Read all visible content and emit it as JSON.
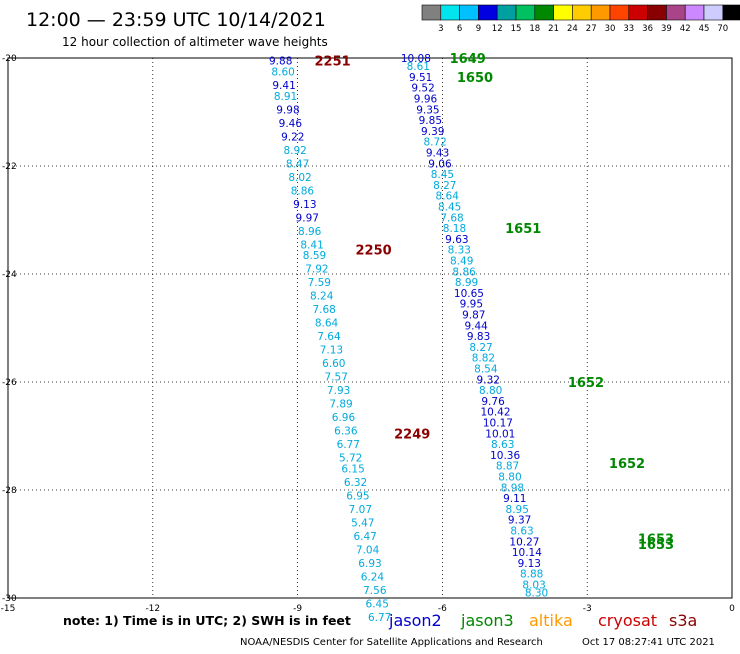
{
  "header": {
    "title": "12:00 — 23:59 UTC 10/14/2021",
    "subtitle": "12 hour collection of altimeter wave heights"
  },
  "colorbar": {
    "ticks": [
      "3",
      "6",
      "9",
      "12",
      "15",
      "18",
      "21",
      "24",
      "27",
      "30",
      "33",
      "36",
      "39",
      "42",
      "45",
      "70"
    ],
    "unit": "(ft)",
    "colors": [
      "#808080",
      "#00e5ee",
      "#00c0ff",
      "#0000e0",
      "#00a0a0",
      "#00c060",
      "#008800",
      "#ffff00",
      "#ffcc00",
      "#ff9900",
      "#ff4400",
      "#cc0000",
      "#880000",
      "#aa4488",
      "#cc88ff",
      "#ccccff",
      "#000000"
    ]
  },
  "footer": {
    "note": "note: 1) Time is in UTC; 2) SWH is in feet",
    "credit": "NOAA/NESDIS Center for Satellite Applications and Research",
    "timestamp": "Oct 17 08:27:41 UTC 2021",
    "legend": [
      {
        "name": "jason2",
        "color": "#0000cc"
      },
      {
        "name": "jason3",
        "color": "#008800"
      },
      {
        "name": "altika",
        "color": "#ff9900"
      },
      {
        "name": "cryosat",
        "color": "#cc0000"
      },
      {
        "name": "s3a",
        "color": "#880000"
      }
    ]
  },
  "chart_data": {
    "type": "scatter",
    "title": "12:00 — 23:59 UTC 10/14/2021",
    "xlim": [
      -15,
      0
    ],
    "ylim": [
      -30,
      -20
    ],
    "x_ticks": [
      -15,
      -12,
      -9,
      -6,
      -3,
      0
    ],
    "x_tick_labels": [
      "-15",
      "-12",
      "-9",
      "-6",
      "-3",
      "0"
    ],
    "y_ticks": [
      -20,
      -22,
      -24,
      -26,
      -28,
      -30
    ],
    "y_tick_labels": [
      "-20",
      "-22",
      "-24",
      "-26",
      "-28",
      "-30"
    ],
    "grid": true,
    "pass_labels": [
      {
        "text": "2251",
        "x": -8.65,
        "y": -20.05,
        "color": "#880000"
      },
      {
        "text": "2250",
        "x": -7.8,
        "y": -23.55,
        "color": "#880000"
      },
      {
        "text": "2249",
        "x": -7.0,
        "y": -26.95,
        "color": "#880000"
      },
      {
        "text": "1649",
        "x": -5.85,
        "y": -20.0,
        "color": "#008800"
      },
      {
        "text": "1650",
        "x": -5.7,
        "y": -20.35,
        "color": "#008800"
      },
      {
        "text": "1651",
        "x": -4.7,
        "y": -23.15,
        "color": "#008800"
      },
      {
        "text": "1652",
        "x": -3.4,
        "y": -26.0,
        "color": "#008800"
      },
      {
        "text": "1652",
        "x": -2.55,
        "y": -27.5,
        "color": "#008800"
      },
      {
        "text": "1653",
        "x": -1.95,
        "y": -28.9,
        "color": "#008800"
      },
      {
        "text": "1653",
        "x": -1.95,
        "y": -29.0,
        "color": "#008800"
      }
    ],
    "series": [
      {
        "name": "s3a",
        "points": [
          {
            "x": -9.35,
            "y": -20.05,
            "v": "9.88",
            "c": "#0000cc"
          },
          {
            "x": -9.3,
            "y": -20.25,
            "v": "8.60",
            "c": "#00aadd"
          },
          {
            "x": -9.28,
            "y": -20.5,
            "v": "9.41",
            "c": "#0000cc"
          },
          {
            "x": -9.25,
            "y": -20.7,
            "v": "8.91",
            "c": "#00aadd"
          },
          {
            "x": -9.2,
            "y": -20.95,
            "v": "9.98",
            "c": "#0000cc"
          },
          {
            "x": -9.15,
            "y": -21.2,
            "v": "9.46",
            "c": "#0000cc"
          },
          {
            "x": -9.1,
            "y": -21.45,
            "v": "9.22",
            "c": "#0000cc"
          },
          {
            "x": -9.05,
            "y": -21.7,
            "v": "8.92",
            "c": "#00aadd"
          },
          {
            "x": -9.0,
            "y": -21.95,
            "v": "8.47",
            "c": "#00aadd"
          },
          {
            "x": -8.95,
            "y": -22.2,
            "v": "8.02",
            "c": "#00aadd"
          },
          {
            "x": -8.9,
            "y": -22.45,
            "v": "8.86",
            "c": "#00aadd"
          },
          {
            "x": -8.85,
            "y": -22.7,
            "v": "9.13",
            "c": "#0000cc"
          },
          {
            "x": -8.8,
            "y": -22.95,
            "v": "9.97",
            "c": "#0000cc"
          },
          {
            "x": -8.75,
            "y": -23.2,
            "v": "8.96",
            "c": "#00aadd"
          },
          {
            "x": -8.7,
            "y": -23.45,
            "v": "8.41",
            "c": "#00aadd"
          },
          {
            "x": -8.65,
            "y": -23.65,
            "v": "8.59",
            "c": "#00aadd"
          },
          {
            "x": -8.6,
            "y": -23.9,
            "v": "7.92",
            "c": "#00aadd"
          },
          {
            "x": -8.55,
            "y": -24.15,
            "v": "7.59",
            "c": "#00aadd"
          },
          {
            "x": -8.5,
            "y": -24.4,
            "v": "8.24",
            "c": "#00aadd"
          },
          {
            "x": -8.45,
            "y": -24.65,
            "v": "7.68",
            "c": "#00aadd"
          },
          {
            "x": -8.4,
            "y": -24.9,
            "v": "8.64",
            "c": "#00aadd"
          },
          {
            "x": -8.35,
            "y": -25.15,
            "v": "7.64",
            "c": "#00aadd"
          },
          {
            "x": -8.3,
            "y": -25.4,
            "v": "7.13",
            "c": "#00aadd"
          },
          {
            "x": -8.25,
            "y": -25.65,
            "v": "6.60",
            "c": "#00aadd"
          },
          {
            "x": -8.2,
            "y": -25.9,
            "v": "7.57",
            "c": "#00aadd"
          },
          {
            "x": -8.15,
            "y": -26.15,
            "v": "7.93",
            "c": "#00aadd"
          },
          {
            "x": -8.1,
            "y": -26.4,
            "v": "7.89",
            "c": "#00aadd"
          },
          {
            "x": -8.05,
            "y": -26.65,
            "v": "6.96",
            "c": "#00aadd"
          },
          {
            "x": -8.0,
            "y": -26.9,
            "v": "6.36",
            "c": "#00aadd"
          },
          {
            "x": -7.95,
            "y": -27.15,
            "v": "6.77",
            "c": "#00aadd"
          },
          {
            "x": -7.9,
            "y": -27.4,
            "v": "5.72",
            "c": "#00aadd"
          },
          {
            "x": -7.85,
            "y": -27.6,
            "v": "6.15",
            "c": "#00aadd"
          },
          {
            "x": -7.8,
            "y": -27.85,
            "v": "6.32",
            "c": "#00aadd"
          },
          {
            "x": -7.75,
            "y": -28.1,
            "v": "6.95",
            "c": "#00aadd"
          },
          {
            "x": -7.7,
            "y": -28.35,
            "v": "7.07",
            "c": "#00aadd"
          },
          {
            "x": -7.65,
            "y": -28.6,
            "v": "5.47",
            "c": "#00aadd"
          },
          {
            "x": -7.6,
            "y": -28.85,
            "v": "6.47",
            "c": "#00aadd"
          },
          {
            "x": -7.55,
            "y": -29.1,
            "v": "7.04",
            "c": "#00aadd"
          },
          {
            "x": -7.5,
            "y": -29.35,
            "v": "6.93",
            "c": "#00aadd"
          },
          {
            "x": -7.45,
            "y": -29.6,
            "v": "6.24",
            "c": "#00aadd"
          },
          {
            "x": -7.4,
            "y": -29.85,
            "v": "7.56",
            "c": "#00aadd"
          },
          {
            "x": -7.35,
            "y": -30.1,
            "v": "6.45",
            "c": "#00aadd"
          },
          {
            "x": -7.3,
            "y": -30.35,
            "v": "6.77",
            "c": "#00aadd"
          }
        ]
      },
      {
        "name": "jason3",
        "points": [
          {
            "x": -6.55,
            "y": -20.0,
            "v": "10.08",
            "c": "#0000cc"
          },
          {
            "x": -6.5,
            "y": -20.15,
            "v": "8.61",
            "c": "#00aadd"
          },
          {
            "x": -6.45,
            "y": -20.35,
            "v": "9.51",
            "c": "#0000cc"
          },
          {
            "x": -6.4,
            "y": -20.55,
            "v": "9.52",
            "c": "#0000cc"
          },
          {
            "x": -6.35,
            "y": -20.75,
            "v": "9.96",
            "c": "#0000cc"
          },
          {
            "x": -6.3,
            "y": -20.95,
            "v": "9.35",
            "c": "#0000cc"
          },
          {
            "x": -6.25,
            "y": -21.15,
            "v": "9.85",
            "c": "#0000cc"
          },
          {
            "x": -6.2,
            "y": -21.35,
            "v": "9.39",
            "c": "#0000cc"
          },
          {
            "x": -6.15,
            "y": -21.55,
            "v": "8.72",
            "c": "#00aadd"
          },
          {
            "x": -6.1,
            "y": -21.75,
            "v": "9.43",
            "c": "#0000cc"
          },
          {
            "x": -6.05,
            "y": -21.95,
            "v": "9.06",
            "c": "#0000cc"
          },
          {
            "x": -6.0,
            "y": -22.15,
            "v": "8.45",
            "c": "#00aadd"
          },
          {
            "x": -5.95,
            "y": -22.35,
            "v": "8.27",
            "c": "#00aadd"
          },
          {
            "x": -5.9,
            "y": -22.55,
            "v": "8.64",
            "c": "#00aadd"
          },
          {
            "x": -5.85,
            "y": -22.75,
            "v": "8.45",
            "c": "#00aadd"
          },
          {
            "x": -5.8,
            "y": -22.95,
            "v": "7.68",
            "c": "#00aadd"
          },
          {
            "x": -5.75,
            "y": -23.15,
            "v": "8.18",
            "c": "#00aadd"
          },
          {
            "x": -5.7,
            "y": -23.35,
            "v": "9.63",
            "c": "#0000cc"
          },
          {
            "x": -5.65,
            "y": -23.55,
            "v": "8.33",
            "c": "#00aadd"
          },
          {
            "x": -5.6,
            "y": -23.75,
            "v": "8.49",
            "c": "#00aadd"
          },
          {
            "x": -5.55,
            "y": -23.95,
            "v": "8.86",
            "c": "#00aadd"
          },
          {
            "x": -5.5,
            "y": -24.15,
            "v": "8.99",
            "c": "#00aadd"
          },
          {
            "x": -5.45,
            "y": -24.35,
            "v": "10.65",
            "c": "#0000cc"
          },
          {
            "x": -5.4,
            "y": -24.55,
            "v": "9.95",
            "c": "#0000cc"
          },
          {
            "x": -5.35,
            "y": -24.75,
            "v": "9.87",
            "c": "#0000cc"
          },
          {
            "x": -5.3,
            "y": -24.95,
            "v": "9.44",
            "c": "#0000cc"
          },
          {
            "x": -5.25,
            "y": -25.15,
            "v": "9.83",
            "c": "#0000cc"
          },
          {
            "x": -5.2,
            "y": -25.35,
            "v": "8.27",
            "c": "#00aadd"
          },
          {
            "x": -5.15,
            "y": -25.55,
            "v": "8.82",
            "c": "#00aadd"
          },
          {
            "x": -5.1,
            "y": -25.75,
            "v": "8.54",
            "c": "#00aadd"
          },
          {
            "x": -5.05,
            "y": -25.95,
            "v": "9.32",
            "c": "#0000cc"
          },
          {
            "x": -5.0,
            "y": -26.15,
            "v": "8.80",
            "c": "#00aadd"
          },
          {
            "x": -4.95,
            "y": -26.35,
            "v": "9.76",
            "c": "#0000cc"
          },
          {
            "x": -4.9,
            "y": -26.55,
            "v": "10.42",
            "c": "#0000cc"
          },
          {
            "x": -4.85,
            "y": -26.75,
            "v": "10.17",
            "c": "#0000cc"
          },
          {
            "x": -4.8,
            "y": -26.95,
            "v": "10.01",
            "c": "#0000cc"
          },
          {
            "x": -4.75,
            "y": -27.15,
            "v": "8.63",
            "c": "#00aadd"
          },
          {
            "x": -4.7,
            "y": -27.35,
            "v": "10.36",
            "c": "#0000cc"
          },
          {
            "x": -4.65,
            "y": -27.55,
            "v": "8.87",
            "c": "#00aadd"
          },
          {
            "x": -4.6,
            "y": -27.75,
            "v": "8.80",
            "c": "#00aadd"
          },
          {
            "x": -4.55,
            "y": -27.95,
            "v": "8.98",
            "c": "#00aadd"
          },
          {
            "x": -4.5,
            "y": -28.15,
            "v": "9.11",
            "c": "#0000cc"
          },
          {
            "x": -4.45,
            "y": -28.35,
            "v": "8.95",
            "c": "#00aadd"
          },
          {
            "x": -4.4,
            "y": -28.55,
            "v": "9.37",
            "c": "#0000cc"
          },
          {
            "x": -4.35,
            "y": -28.75,
            "v": "8.63",
            "c": "#00aadd"
          },
          {
            "x": -4.3,
            "y": -28.95,
            "v": "10.27",
            "c": "#0000cc"
          },
          {
            "x": -4.25,
            "y": -29.15,
            "v": "10.14",
            "c": "#0000cc"
          },
          {
            "x": -4.2,
            "y": -29.35,
            "v": "9.13",
            "c": "#0000cc"
          },
          {
            "x": -4.15,
            "y": -29.55,
            "v": "8.88",
            "c": "#00aadd"
          },
          {
            "x": -4.1,
            "y": -29.75,
            "v": "8.03",
            "c": "#00aadd"
          },
          {
            "x": -4.05,
            "y": -29.9,
            "v": "8.30",
            "c": "#00aadd"
          }
        ]
      }
    ]
  }
}
